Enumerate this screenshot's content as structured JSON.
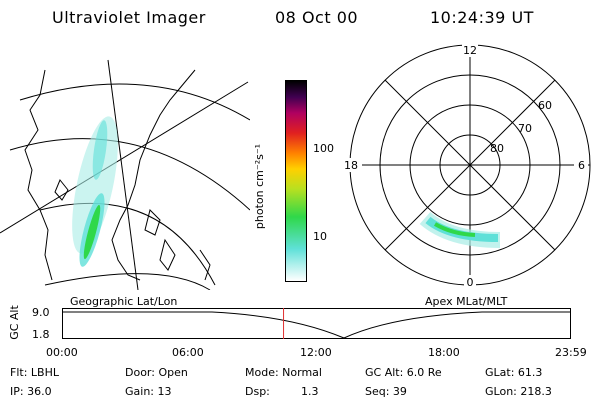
{
  "header": {
    "instrument": "Ultraviolet Imager",
    "date": "08 Oct 00",
    "time": "10:24:39 UT"
  },
  "colorbar": {
    "ticks": [
      "100",
      "10"
    ],
    "unit_label": "photon cm⁻²s⁻¹"
  },
  "polar_plot": {
    "mlt_labels": [
      "12",
      "18",
      "6",
      "0"
    ],
    "lat_labels": [
      "60",
      "70",
      "80"
    ]
  },
  "panel_labels": {
    "left": "Geographic Lat/Lon",
    "right": "Apex MLat/MLT"
  },
  "altitude_plot": {
    "ylabel": "GC Alt",
    "y_ticks": [
      "9.0",
      "1.8"
    ],
    "x_ticks": [
      "00:00",
      "06:00",
      "12:00",
      "18:00",
      "23:59"
    ],
    "current_time_fraction": 0.435
  },
  "info": {
    "filter": "Flt: LBHL",
    "ip": "IP: 36.0",
    "door": "Door: Open",
    "gain": "Gain: 13",
    "mode": "Mode: Normal",
    "dsp_label": "Dsp:",
    "dsp_value": "1.3",
    "gc_alt": "GC Alt: 6.0 Re",
    "seq": "Seq: 39",
    "glat": "GLat: 61.3",
    "glon": "GLon: 218.3"
  },
  "colors": {
    "auroral_green": "#2fd84a",
    "auroral_cyan": "#5fe0d8",
    "current_time_marker": "#e03030"
  }
}
